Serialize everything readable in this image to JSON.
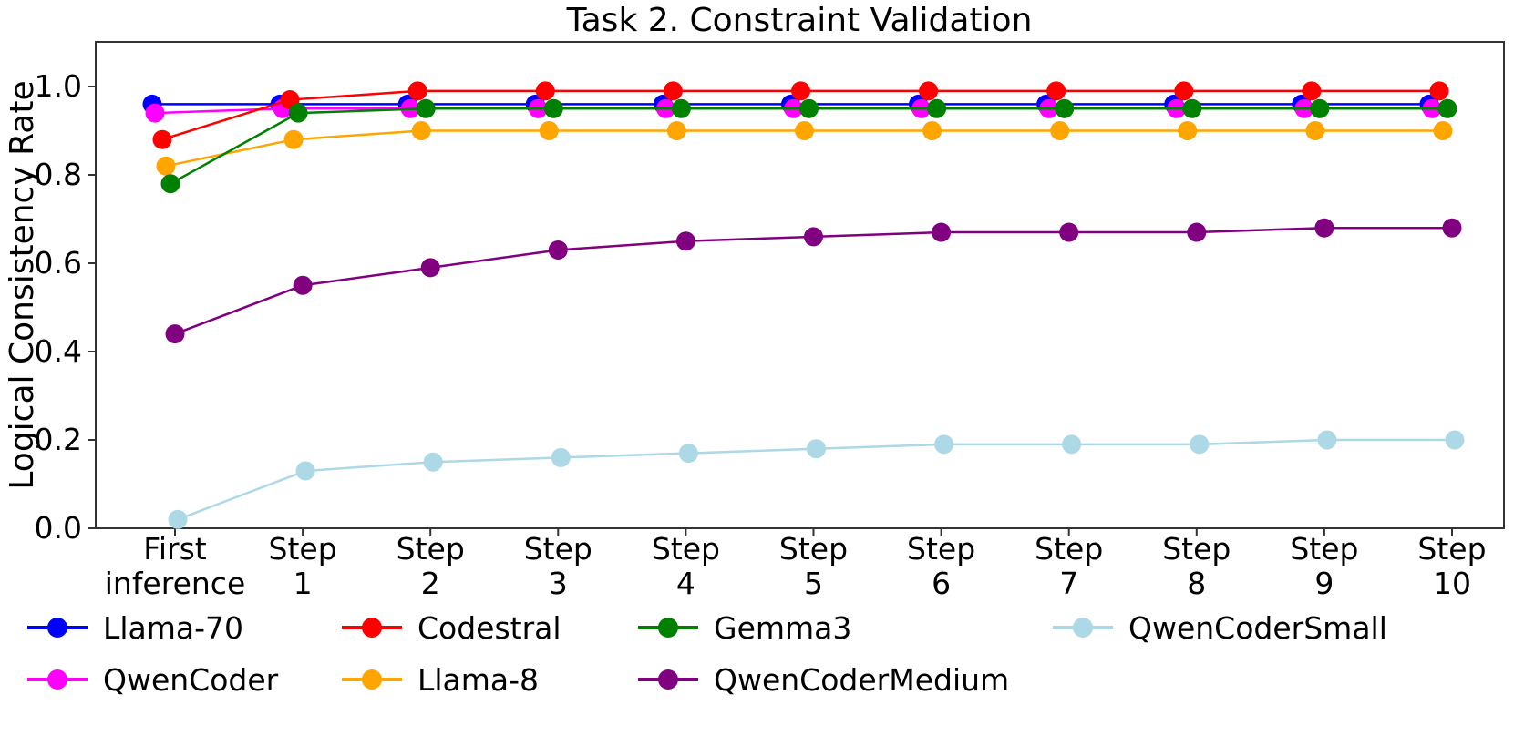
{
  "chart_data": {
    "type": "line",
    "title": "Task 2. Constraint Validation",
    "xlabel": "",
    "ylabel": "Logical Consistency Rate",
    "categories": [
      "First\ninference",
      "Step\n1",
      "Step\n2",
      "Step\n3",
      "Step\n4",
      "Step\n5",
      "Step\n6",
      "Step\n7",
      "Step\n8",
      "Step\n9",
      "Step\n10"
    ],
    "y_ticks": [
      0.0,
      0.2,
      0.4,
      0.6,
      0.8,
      1.0
    ],
    "y_tick_labels": [
      "0.0",
      "0.2",
      "0.4",
      "0.6",
      "0.8",
      "1.0"
    ],
    "ylim": [
      0,
      1.1
    ],
    "grid": false,
    "legend_position": "bottom",
    "series": [
      {
        "name": "Llama-70",
        "color": "#0000FF",
        "values": [
          0.96,
          0.96,
          0.96,
          0.96,
          0.96,
          0.96,
          0.96,
          0.96,
          0.96,
          0.96,
          0.96
        ]
      },
      {
        "name": "QwenCoder",
        "color": "#FF00FF",
        "values": [
          0.94,
          0.95,
          0.95,
          0.95,
          0.95,
          0.95,
          0.95,
          0.95,
          0.95,
          0.95,
          0.95
        ]
      },
      {
        "name": "Codestral",
        "color": "#FF0000",
        "values": [
          0.88,
          0.97,
          0.99,
          0.99,
          0.99,
          0.99,
          0.99,
          0.99,
          0.99,
          0.99,
          0.99
        ]
      },
      {
        "name": "Llama-8",
        "color": "#FFA500",
        "values": [
          0.82,
          0.88,
          0.9,
          0.9,
          0.9,
          0.9,
          0.9,
          0.9,
          0.9,
          0.9,
          0.9
        ]
      },
      {
        "name": "Gemma3",
        "color": "#008000",
        "values": [
          0.78,
          0.94,
          0.95,
          0.95,
          0.95,
          0.95,
          0.95,
          0.95,
          0.95,
          0.95,
          0.95
        ]
      },
      {
        "name": "QwenCoderMedium",
        "color": "#800080",
        "values": [
          0.44,
          0.55,
          0.59,
          0.63,
          0.65,
          0.66,
          0.67,
          0.67,
          0.67,
          0.68,
          0.68
        ]
      },
      {
        "name": "QwenCoderSmall",
        "color": "#ADD8E6",
        "values": [
          0.02,
          0.13,
          0.15,
          0.16,
          0.17,
          0.18,
          0.19,
          0.19,
          0.19,
          0.2,
          0.2
        ]
      }
    ],
    "legend_columns": [
      [
        0,
        1
      ],
      [
        2,
        3
      ],
      [
        4,
        5
      ],
      [
        6
      ]
    ]
  }
}
